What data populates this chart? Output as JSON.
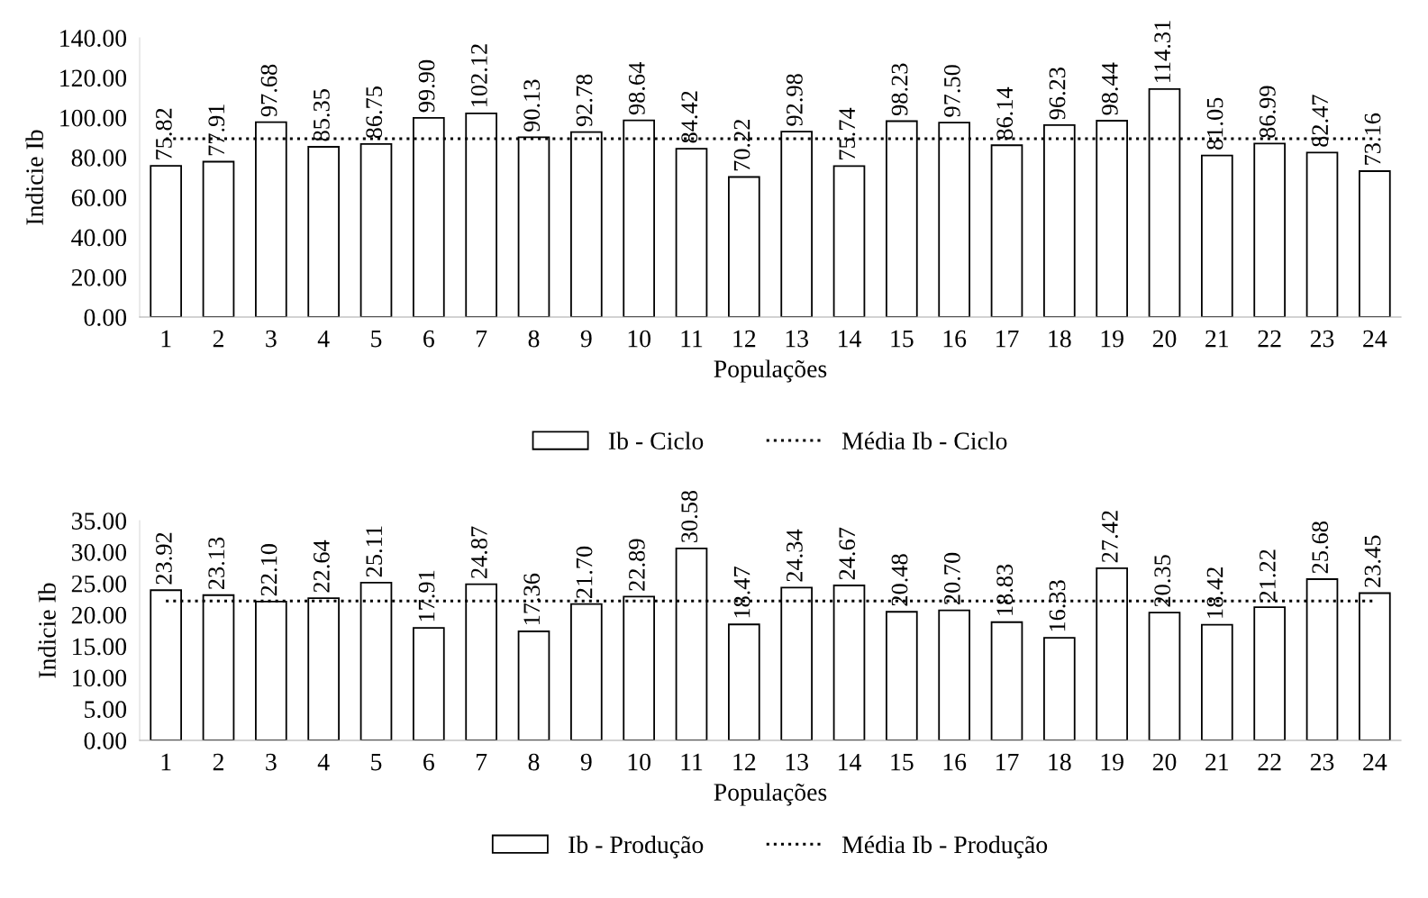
{
  "chart_data": [
    {
      "type": "bar",
      "xlabel": "Populações",
      "ylabel": "Indicie Ib",
      "categories": [
        "1",
        "2",
        "3",
        "4",
        "5",
        "6",
        "7",
        "8",
        "9",
        "10",
        "11",
        "12",
        "13",
        "14",
        "15",
        "16",
        "17",
        "18",
        "19",
        "20",
        "21",
        "22",
        "23",
        "24"
      ],
      "ylim": [
        0,
        140
      ],
      "yticks": [
        {
          "value": 0,
          "label": "0.00"
        },
        {
          "value": 20,
          "label": "20.00"
        },
        {
          "value": 40,
          "label": "40.00"
        },
        {
          "value": 60,
          "label": "60.00"
        },
        {
          "value": 80,
          "label": "80.00"
        },
        {
          "value": 100,
          "label": "100.00"
        },
        {
          "value": 120,
          "label": "120.00"
        },
        {
          "value": 140,
          "label": "140.00"
        }
      ],
      "grid": false,
      "legend": "bottom",
      "series": [
        {
          "name": "Ib - Ciclo",
          "color": "#ffffff",
          "values": [
            75.82,
            77.91,
            97.68,
            85.35,
            86.75,
            99.9,
            102.12,
            90.13,
            92.78,
            98.64,
            84.42,
            70.22,
            92.98,
            75.74,
            98.23,
            97.5,
            86.14,
            96.23,
            98.44,
            114.31,
            81.05,
            86.99,
            82.47,
            73.16
          ],
          "value_labels": [
            "75.82",
            "77.91",
            "97.68",
            "85.35",
            "86.75",
            "99.90",
            "102.12",
            "90.13",
            "92.78",
            "98.64",
            "84.42",
            "70.22",
            "92.98",
            "75.74",
            "98.23",
            "97.50",
            "86.14",
            "96.23",
            "98.44",
            "114.31",
            "81.05",
            "86.99",
            "82.47",
            "73.16"
          ]
        },
        {
          "name": "Média Ib - Ciclo",
          "type": "line",
          "color": "#000000",
          "line_style": "dotted",
          "values": [
            89.4,
            89.4,
            89.4,
            89.4,
            89.4,
            89.4,
            89.4,
            89.4,
            89.4,
            89.4,
            89.4,
            89.4,
            89.4,
            89.4,
            89.4,
            89.4,
            89.4,
            89.4,
            89.4,
            89.4,
            89.4,
            89.4,
            89.4,
            89.4
          ]
        }
      ]
    },
    {
      "type": "bar",
      "xlabel": "Populações",
      "ylabel": "Indicie Ib",
      "categories": [
        "1",
        "2",
        "3",
        "4",
        "5",
        "6",
        "7",
        "8",
        "9",
        "10",
        "11",
        "12",
        "13",
        "14",
        "15",
        "16",
        "17",
        "18",
        "19",
        "20",
        "21",
        "22",
        "23",
        "24"
      ],
      "ylim": [
        0,
        35
      ],
      "yticks": [
        {
          "value": 0,
          "label": "0.00"
        },
        {
          "value": 5,
          "label": "5.00"
        },
        {
          "value": 10,
          "label": "10.00"
        },
        {
          "value": 15,
          "label": "15.00"
        },
        {
          "value": 20,
          "label": "20.00"
        },
        {
          "value": 25,
          "label": "25.00"
        },
        {
          "value": 30,
          "label": "30.00"
        },
        {
          "value": 35,
          "label": "35.00"
        }
      ],
      "grid": false,
      "legend": "bottom",
      "series": [
        {
          "name": "Ib - Produção",
          "color": "#ffffff",
          "values": [
            23.92,
            23.13,
            22.1,
            22.64,
            25.11,
            17.91,
            24.87,
            17.36,
            21.7,
            22.89,
            30.58,
            18.47,
            24.34,
            24.67,
            20.48,
            20.7,
            18.83,
            16.33,
            27.42,
            20.35,
            18.42,
            21.22,
            25.68,
            23.45
          ],
          "value_labels": [
            "23.92",
            "23.13",
            "22.10",
            "22.64",
            "25.11",
            "17.91",
            "24.87",
            "17.36",
            "21.70",
            "22.89",
            "30.58",
            "18.47",
            "24.34",
            "24.67",
            "20.48",
            "20.70",
            "18.83",
            "16.33",
            "27.42",
            "20.35",
            "18.42",
            "21.22",
            "25.68",
            "23.45"
          ]
        },
        {
          "name": "Média Ib - Produção",
          "type": "line",
          "color": "#000000",
          "line_style": "dotted",
          "values": [
            22.2,
            22.2,
            22.2,
            22.2,
            22.2,
            22.2,
            22.2,
            22.2,
            22.2,
            22.2,
            22.2,
            22.2,
            22.2,
            22.2,
            22.2,
            22.2,
            22.2,
            22.2,
            22.2,
            22.2,
            22.2,
            22.2,
            22.2,
            22.2
          ]
        }
      ]
    }
  ]
}
